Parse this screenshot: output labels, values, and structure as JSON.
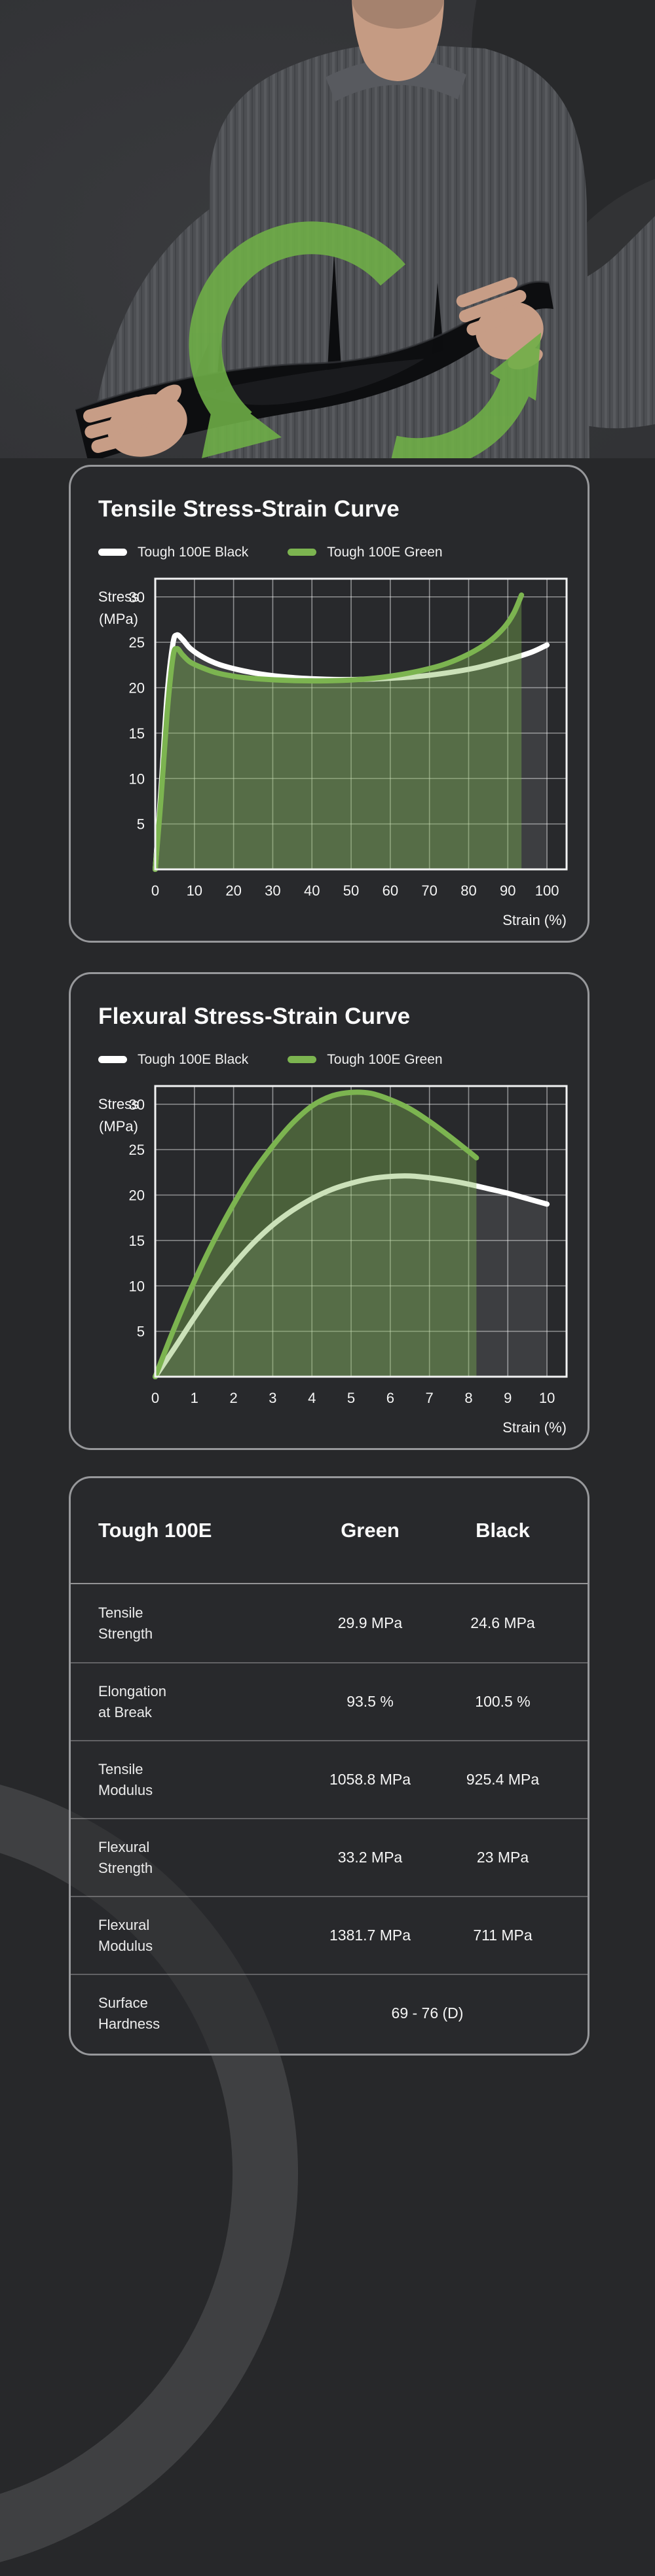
{
  "page": {
    "background": "#27282a",
    "card_border": "#97989b",
    "accent_green": "#7cb450",
    "accent_white": "#ffffff"
  },
  "hero": {
    "arrow_color": "#6fb047"
  },
  "chart_data": [
    {
      "type": "line",
      "title": "Tensile Stress-Strain Curve",
      "ylabel_line1": "Stress",
      "ylabel_line2": "(MPa)",
      "xlabel": "Strain (%)",
      "xlim": [
        0,
        105
      ],
      "ylim": [
        0,
        32
      ],
      "xticks": [
        0,
        10,
        20,
        30,
        40,
        50,
        60,
        70,
        80,
        90,
        100
      ],
      "yticks": [
        5,
        10,
        15,
        20,
        25,
        30
      ],
      "grid": true,
      "legend_position": "top",
      "legend": [
        {
          "label": "Tough 100E Black",
          "color": "#ffffff"
        },
        {
          "label": "Tough 100E Green",
          "color": "#7cb450"
        }
      ],
      "series": [
        {
          "name": "tough-100e-black",
          "color": "#ffffff",
          "fill": "rgba(255,255,255,0.10)",
          "points": [
            [
              0,
              0
            ],
            [
              1.5,
              9
            ],
            [
              3,
              19
            ],
            [
              4.5,
              24.8
            ],
            [
              5.5,
              25.8
            ],
            [
              7,
              25.3
            ],
            [
              9,
              24.3
            ],
            [
              12,
              23.4
            ],
            [
              16,
              22.6
            ],
            [
              21,
              22.0
            ],
            [
              27,
              21.5
            ],
            [
              34,
              21.15
            ],
            [
              42,
              20.95
            ],
            [
              50,
              20.9
            ],
            [
              58,
              21.0
            ],
            [
              66,
              21.2
            ],
            [
              74,
              21.6
            ],
            [
              82,
              22.2
            ],
            [
              90,
              23.1
            ],
            [
              96,
              23.9
            ],
            [
              100,
              24.7
            ]
          ]
        },
        {
          "name": "tough-100e-green",
          "color": "#7cb450",
          "fill": "rgba(124,180,80,0.40)",
          "points": [
            [
              0,
              0
            ],
            [
              1.5,
              8
            ],
            [
              3,
              17
            ],
            [
              4.5,
              23.3
            ],
            [
              5.5,
              24.3
            ],
            [
              7,
              23.6
            ],
            [
              9,
              22.8
            ],
            [
              12,
              22.2
            ],
            [
              16,
              21.6
            ],
            [
              21,
              21.2
            ],
            [
              27,
              20.95
            ],
            [
              34,
              20.8
            ],
            [
              42,
              20.75
            ],
            [
              50,
              20.85
            ],
            [
              56,
              21.05
            ],
            [
              62,
              21.4
            ],
            [
              68,
              21.9
            ],
            [
              74,
              22.6
            ],
            [
              80,
              23.7
            ],
            [
              85,
              25.0
            ],
            [
              89,
              26.6
            ],
            [
              91.5,
              28.2
            ],
            [
              93.5,
              30.2
            ]
          ]
        }
      ]
    },
    {
      "type": "line",
      "title": "Flexural Stress-Strain Curve",
      "ylabel_line1": "Stress",
      "ylabel_line2": "(MPa)",
      "xlabel": "Strain (%)",
      "xlim": [
        0,
        10.5
      ],
      "ylim": [
        0,
        32
      ],
      "xticks": [
        0,
        1,
        2,
        3,
        4,
        5,
        6,
        7,
        8,
        9,
        10
      ],
      "yticks": [
        5,
        10,
        15,
        20,
        25,
        30
      ],
      "grid": true,
      "legend_position": "top",
      "legend": [
        {
          "label": "Tough 100E Black",
          "color": "#ffffff"
        },
        {
          "label": "Tough 100E Green",
          "color": "#7cb450"
        }
      ],
      "series": [
        {
          "name": "tough-100e-black",
          "color": "#ffffff",
          "fill": "rgba(255,255,255,0.10)",
          "points": [
            [
              0,
              0
            ],
            [
              0.5,
              3.2
            ],
            [
              1,
              6.5
            ],
            [
              1.5,
              9.6
            ],
            [
              2,
              12.3
            ],
            [
              2.5,
              14.7
            ],
            [
              3,
              16.7
            ],
            [
              3.5,
              18.3
            ],
            [
              4,
              19.6
            ],
            [
              4.5,
              20.6
            ],
            [
              5,
              21.3
            ],
            [
              5.5,
              21.8
            ],
            [
              6,
              22.05
            ],
            [
              6.5,
              22.1
            ],
            [
              7,
              21.9
            ],
            [
              7.5,
              21.6
            ],
            [
              8,
              21.2
            ],
            [
              8.5,
              20.7
            ],
            [
              9,
              20.2
            ],
            [
              9.5,
              19.6
            ],
            [
              10,
              19.0
            ]
          ]
        },
        {
          "name": "tough-100e-green",
          "color": "#7cb450",
          "fill": "rgba(124,180,80,0.40)",
          "points": [
            [
              0,
              0
            ],
            [
              0.5,
              5.5
            ],
            [
              1,
              10.5
            ],
            [
              1.5,
              15
            ],
            [
              2,
              19
            ],
            [
              2.5,
              22.5
            ],
            [
              3,
              25.4
            ],
            [
              3.5,
              27.9
            ],
            [
              4,
              29.8
            ],
            [
              4.5,
              30.9
            ],
            [
              5,
              31.3
            ],
            [
              5.5,
              31.2
            ],
            [
              6,
              30.5
            ],
            [
              6.5,
              29.5
            ],
            [
              7,
              28.1
            ],
            [
              7.5,
              26.5
            ],
            [
              8,
              24.8
            ],
            [
              8.2,
              24.1
            ]
          ]
        }
      ]
    }
  ],
  "table": {
    "header": {
      "product": "Tough 100E",
      "col_green": "Green",
      "col_black": "Black"
    },
    "rows": [
      {
        "label": "Tensile\nStrength",
        "green": "29.9 MPa",
        "black": "24.6 MPa"
      },
      {
        "label": "Elongation\nat Break",
        "green": "93.5 %",
        "black": "100.5 %"
      },
      {
        "label": "Tensile\nModulus",
        "green": "1058.8 MPa",
        "black": "925.4 MPa"
      },
      {
        "label": "Flexural\nStrength",
        "green": "33.2 MPa",
        "black": "23 MPa"
      },
      {
        "label": "Flexural\nModulus",
        "green": "1381.7 MPa",
        "black": "711 MPa"
      },
      {
        "label": "Surface\nHardness",
        "span": "69 - 76 (D)"
      }
    ]
  }
}
